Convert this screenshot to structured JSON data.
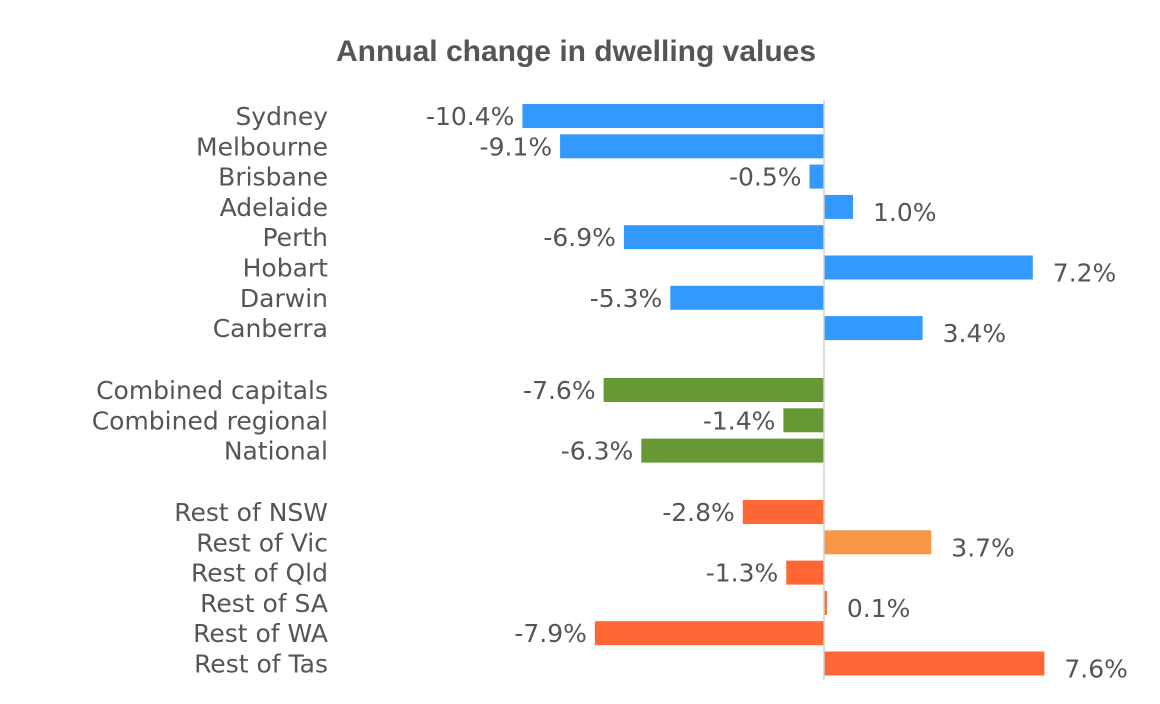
{
  "chart_data": {
    "type": "bar",
    "orientation": "horizontal",
    "title": "Annual change in dwelling values",
    "xlabel": "",
    "ylabel": "",
    "xlim": [
      -10.4,
      10.4
    ],
    "grid": false,
    "legend": "none",
    "colors": {
      "capitals": "#3399ff",
      "aggregates": "#669933",
      "regional": "#ff6633",
      "regional_alt": "#f79646"
    },
    "groups": [
      {
        "key": "capitals",
        "bars": [
          {
            "category": "Sydney",
            "value": -10.4,
            "label": "-10.4%",
            "color": "#3399ff"
          },
          {
            "category": "Melbourne",
            "value": -9.1,
            "label": "-9.1%",
            "color": "#3399ff"
          },
          {
            "category": "Brisbane",
            "value": -0.5,
            "label": "-0.5%",
            "color": "#3399ff"
          },
          {
            "category": "Adelaide",
            "value": 1.0,
            "label": "1.0%",
            "color": "#3399ff"
          },
          {
            "category": "Perth",
            "value": -6.9,
            "label": "-6.9%",
            "color": "#3399ff"
          },
          {
            "category": "Hobart",
            "value": 7.2,
            "label": "7.2%",
            "color": "#3399ff"
          },
          {
            "category": "Darwin",
            "value": -5.3,
            "label": "-5.3%",
            "color": "#3399ff"
          },
          {
            "category": "Canberra",
            "value": 3.4,
            "label": "3.4%",
            "color": "#3399ff"
          }
        ]
      },
      {
        "key": "aggregates",
        "bars": [
          {
            "category": "Combined capitals",
            "value": -7.6,
            "label": "-7.6%",
            "color": "#669933"
          },
          {
            "category": "Combined regional",
            "value": -1.4,
            "label": "-1.4%",
            "color": "#669933"
          },
          {
            "category": "National",
            "value": -6.3,
            "label": "-6.3%",
            "color": "#669933"
          }
        ]
      },
      {
        "key": "regional",
        "bars": [
          {
            "category": "Rest of NSW",
            "value": -2.8,
            "label": "-2.8%",
            "color": "#ff6633"
          },
          {
            "category": "Rest of Vic",
            "value": 3.7,
            "label": "3.7%",
            "color": "#f79646"
          },
          {
            "category": "Rest of Qld",
            "value": -1.3,
            "label": "-1.3%",
            "color": "#ff6633"
          },
          {
            "category": "Rest of SA",
            "value": 0.1,
            "label": "0.1%",
            "color": "#ff6633"
          },
          {
            "category": "Rest of WA",
            "value": -7.9,
            "label": "-7.9%",
            "color": "#ff6633"
          },
          {
            "category": "Rest of Tas",
            "value": 7.6,
            "label": "7.6%",
            "color": "#ff6633"
          }
        ]
      }
    ]
  }
}
